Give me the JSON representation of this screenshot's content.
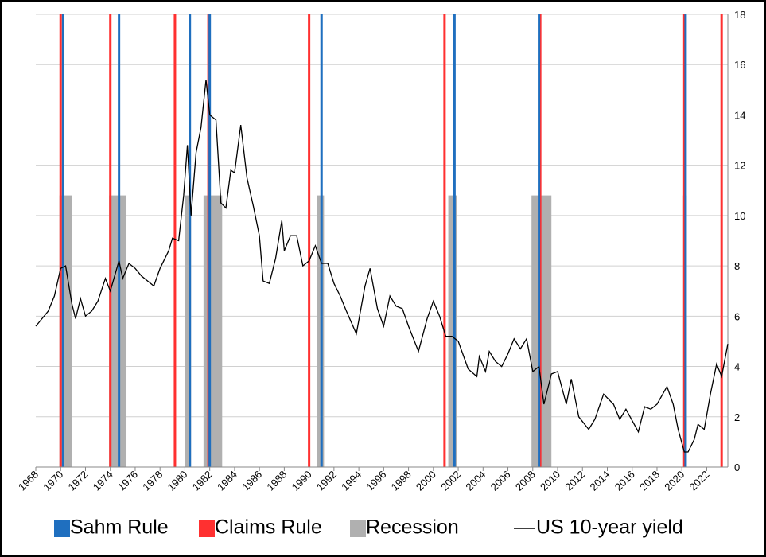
{
  "chart_data": {
    "type": "line",
    "xlim": [
      1968,
      2023.7
    ],
    "xticks": [
      1968,
      1970,
      1972,
      1974,
      1976,
      1978,
      1980,
      1982,
      1984,
      1986,
      1988,
      1990,
      1992,
      1994,
      1996,
      1998,
      2000,
      2002,
      2004,
      2006,
      2008,
      2010,
      2012,
      2014,
      2016,
      2018,
      2020,
      2022
    ],
    "y2lim": [
      0,
      18
    ],
    "y2ticks": [
      0,
      2,
      4,
      6,
      8,
      10,
      12,
      14,
      16,
      18
    ],
    "grid": true,
    "legend": "bottom",
    "recessions": {
      "name": "Recession",
      "color": "#b0b0b0",
      "height": 10.8,
      "start": [
        1969.9,
        1973.9,
        1980.0,
        1981.5,
        1990.6,
        2001.2,
        2007.9,
        2020.1
      ],
      "end": [
        1970.9,
        1975.3,
        1980.5,
        1983.0,
        1991.2,
        2001.9,
        2009.5,
        2020.4
      ]
    },
    "sahm": {
      "name": "Sahm Rule",
      "color": "#1f6fbf",
      "x": [
        1970.2,
        1974.7,
        1980.4,
        1982.0,
        1991.0,
        2001.7,
        2008.5,
        2020.3
      ]
    },
    "claims": {
      "name": "Claims Rule",
      "color": "#ff3030",
      "x": [
        1970.0,
        1974.0,
        1979.2,
        1981.9,
        1990.0,
        2000.9,
        2008.6,
        2020.2,
        2023.2
      ]
    },
    "series": [
      {
        "name": "US 10-year yield",
        "color": "#000000",
        "axis": "y2",
        "x": [
          1968.0,
          1968.5,
          1969,
          1969.5,
          1970.0,
          1970.4,
          1970.9,
          1971.2,
          1971.6,
          1972,
          1972.5,
          1973,
          1973.6,
          1974,
          1974.7,
          1975,
          1975.5,
          1976,
          1976.5,
          1977,
          1977.5,
          1978,
          1978.7,
          1979,
          1979.5,
          1979.9,
          1980.2,
          1980.5,
          1980.9,
          1981.3,
          1981.7,
          1982.0,
          1982.5,
          1982.9,
          1983.3,
          1983.7,
          1984.0,
          1984.5,
          1985.0,
          1985.5,
          1986.0,
          1986.3,
          1986.8,
          1987.3,
          1987.8,
          1988.0,
          1988.5,
          1989.0,
          1989.5,
          1990,
          1990.5,
          1991,
          1991.5,
          1992,
          1992.5,
          1993,
          1993.8,
          1994.5,
          1994.9,
          1995.5,
          1996,
          1996.5,
          1997,
          1997.5,
          1998,
          1998.8,
          1999.5,
          2000,
          2000.5,
          2001,
          2001.5,
          2002,
          2002.8,
          2003.5,
          2003.7,
          2004.2,
          2004.5,
          2005,
          2005.5,
          2006,
          2006.5,
          2007,
          2007.5,
          2008,
          2008.5,
          2008.9,
          2009.5,
          2010,
          2010.7,
          2011.1,
          2011.7,
          2012.5,
          2013,
          2013.7,
          2014.5,
          2015,
          2015.5,
          2016.5,
          2017,
          2017.5,
          2018,
          2018.8,
          2019.3,
          2019.7,
          2020.2,
          2020.5,
          2021,
          2021.3,
          2021.8,
          2022.3,
          2022.8,
          2023.2,
          2023.7
        ],
        "values": [
          5.6,
          5.9,
          6.2,
          6.8,
          7.9,
          8.0,
          6.5,
          5.9,
          6.7,
          6.0,
          6.2,
          6.6,
          7.5,
          7.0,
          8.2,
          7.5,
          8.1,
          7.9,
          7.6,
          7.4,
          7.2,
          7.9,
          8.6,
          9.1,
          9.0,
          10.8,
          12.8,
          10.0,
          12.5,
          13.5,
          15.4,
          14.0,
          13.8,
          10.5,
          10.3,
          11.8,
          11.7,
          13.6,
          11.5,
          10.4,
          9.2,
          7.4,
          7.3,
          8.3,
          9.8,
          8.6,
          9.2,
          9.2,
          8.0,
          8.2,
          8.8,
          8.1,
          8.1,
          7.3,
          6.8,
          6.2,
          5.3,
          7.2,
          7.9,
          6.3,
          5.6,
          6.8,
          6.4,
          6.3,
          5.6,
          4.6,
          5.9,
          6.6,
          6.0,
          5.2,
          5.2,
          5.0,
          3.9,
          3.6,
          4.4,
          3.8,
          4.6,
          4.2,
          4.0,
          4.5,
          5.1,
          4.7,
          5.1,
          3.8,
          4.0,
          2.5,
          3.7,
          3.8,
          2.5,
          3.5,
          2.0,
          1.5,
          1.9,
          2.9,
          2.5,
          1.9,
          2.3,
          1.4,
          2.4,
          2.3,
          2.5,
          3.2,
          2.5,
          1.5,
          0.6,
          0.6,
          1.1,
          1.7,
          1.5,
          2.9,
          4.1,
          3.6,
          4.9
        ]
      }
    ]
  }
}
